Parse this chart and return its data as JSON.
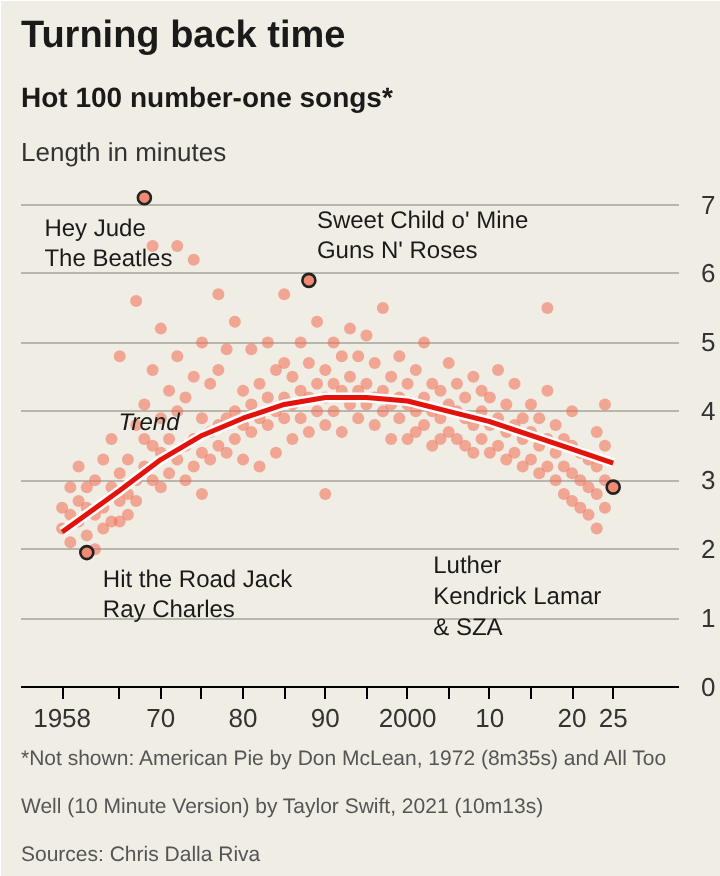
{
  "chart_data": {
    "type": "scatter",
    "title": "Turning back time",
    "subtitle": "Hot 100 number-one songs*",
    "ylabel": "Length in minutes",
    "xlim": [
      1953,
      2033
    ],
    "ylim": [
      0,
      7.4
    ],
    "xticks": [
      {
        "value": 1958,
        "label": "1958"
      },
      {
        "value": 1965,
        "label": null
      },
      {
        "value": 1970,
        "label": "70"
      },
      {
        "value": 1975,
        "label": null
      },
      {
        "value": 1980,
        "label": "80"
      },
      {
        "value": 1985,
        "label": null
      },
      {
        "value": 1990,
        "label": "90"
      },
      {
        "value": 1995,
        "label": null
      },
      {
        "value": 2000,
        "label": "2000"
      },
      {
        "value": 2005,
        "label": null
      },
      {
        "value": 2010,
        "label": "10"
      },
      {
        "value": 2015,
        "label": null
      },
      {
        "value": 2020,
        "label": "20"
      },
      {
        "value": 2025,
        "label": "25"
      }
    ],
    "yticks": [
      0,
      1,
      2,
      3,
      4,
      5,
      6,
      7
    ],
    "grid": "y",
    "marker": "circle",
    "series": [
      {
        "color": "#f26b50",
        "x": [
          1958,
          1958,
          1959,
          1959,
          1959,
          1960,
          1960,
          1960,
          1961,
          1961,
          1961,
          1962,
          1962,
          1962,
          1963,
          1963,
          1963,
          1964,
          1964,
          1964,
          1965,
          1965,
          1965,
          1965,
          1966,
          1966,
          1966,
          1967,
          1967,
          1967,
          1967,
          1968,
          1968,
          1968,
          1969,
          1969,
          1969,
          1969,
          1970,
          1970,
          1970,
          1970,
          1971,
          1971,
          1971,
          1972,
          1972,
          1972,
          1972,
          1973,
          1973,
          1973,
          1974,
          1974,
          1974,
          1974,
          1975,
          1975,
          1975,
          1975,
          1976,
          1976,
          1976,
          1977,
          1977,
          1977,
          1977,
          1978,
          1978,
          1978,
          1979,
          1979,
          1979,
          1980,
          1980,
          1980,
          1981,
          1981,
          1981,
          1982,
          1982,
          1982,
          1983,
          1983,
          1983,
          1984,
          1984,
          1984,
          1985,
          1985,
          1985,
          1985,
          1986,
          1986,
          1986,
          1987,
          1987,
          1987,
          1988,
          1988,
          1988,
          1989,
          1989,
          1989,
          1990,
          1990,
          1990,
          1990,
          1991,
          1991,
          1991,
          1992,
          1992,
          1992,
          1993,
          1993,
          1993,
          1994,
          1994,
          1994,
          1995,
          1995,
          1995,
          1996,
          1996,
          1996,
          1997,
          1997,
          1997,
          1998,
          1998,
          1998,
          1999,
          1999,
          1999,
          2000,
          2000,
          2000,
          2001,
          2001,
          2001,
          2002,
          2002,
          2002,
          2003,
          2003,
          2003,
          2004,
          2004,
          2004,
          2005,
          2005,
          2005,
          2006,
          2006,
          2006,
          2007,
          2007,
          2007,
          2008,
          2008,
          2008,
          2009,
          2009,
          2009,
          2010,
          2010,
          2010,
          2011,
          2011,
          2011,
          2012,
          2012,
          2012,
          2013,
          2013,
          2013,
          2014,
          2014,
          2014,
          2015,
          2015,
          2015,
          2016,
          2016,
          2016,
          2017,
          2017,
          2017,
          2017,
          2018,
          2018,
          2018,
          2019,
          2019,
          2019,
          2020,
          2020,
          2020,
          2020,
          2021,
          2021,
          2021,
          2022,
          2022,
          2022,
          2023,
          2023,
          2023,
          2023,
          2024,
          2024,
          2024,
          2024
        ],
        "values": [
          2.3,
          2.6,
          2.5,
          2.1,
          2.9,
          2.4,
          2.7,
          3.2,
          2.2,
          2.6,
          2.9,
          2.5,
          2.0,
          3.0,
          2.6,
          2.3,
          3.3,
          2.4,
          2.9,
          3.6,
          2.7,
          3.1,
          2.4,
          4.8,
          2.8,
          3.3,
          2.5,
          3.0,
          2.7,
          3.8,
          5.6,
          3.2,
          4.1,
          3.6,
          3.5,
          3.0,
          4.6,
          6.4,
          3.4,
          3.9,
          2.9,
          5.2,
          3.6,
          3.1,
          4.3,
          3.3,
          4.0,
          4.8,
          6.4,
          3.5,
          3.0,
          4.2,
          3.6,
          3.2,
          4.5,
          6.2,
          3.4,
          3.9,
          2.8,
          5.0,
          3.7,
          3.3,
          4.4,
          3.8,
          3.5,
          4.6,
          5.7,
          3.9,
          3.4,
          4.9,
          4.0,
          3.6,
          5.3,
          3.8,
          4.3,
          3.3,
          4.1,
          3.7,
          4.9,
          3.9,
          4.4,
          3.2,
          4.2,
          3.8,
          5.0,
          4.0,
          4.6,
          3.4,
          4.2,
          3.9,
          4.7,
          5.7,
          4.1,
          3.6,
          4.5,
          4.3,
          3.9,
          5.0,
          4.2,
          4.7,
          3.7,
          4.4,
          4.0,
          5.3,
          4.2,
          4.6,
          3.8,
          2.8,
          4.4,
          4.0,
          5.0,
          4.3,
          4.8,
          3.7,
          4.5,
          4.1,
          5.2,
          4.3,
          3.9,
          4.8,
          4.4,
          4.1,
          5.1,
          4.2,
          4.7,
          3.8,
          4.3,
          4.0,
          5.5,
          4.1,
          4.5,
          3.6,
          4.2,
          3.9,
          4.8,
          4.1,
          4.4,
          3.6,
          4.0,
          4.6,
          3.7,
          4.2,
          3.8,
          5.0,
          4.0,
          4.4,
          3.5,
          3.9,
          4.3,
          3.6,
          4.1,
          3.7,
          4.7,
          4.0,
          3.6,
          4.4,
          3.9,
          4.2,
          3.5,
          3.8,
          4.5,
          3.4,
          4.0,
          3.6,
          4.3,
          3.8,
          4.2,
          3.4,
          3.9,
          3.5,
          4.6,
          3.7,
          4.1,
          3.3,
          3.8,
          4.4,
          3.4,
          3.6,
          3.9,
          3.2,
          3.7,
          4.1,
          3.3,
          3.5,
          3.9,
          3.1,
          3.6,
          4.3,
          3.2,
          5.5,
          3.4,
          3.8,
          3.0,
          3.2,
          3.6,
          2.8,
          3.1,
          3.5,
          2.7,
          4.0,
          3.0,
          3.4,
          2.6,
          2.9,
          3.3,
          2.5,
          3.2,
          2.8,
          3.7,
          2.3,
          3.0,
          3.5,
          2.6,
          4.1
        ]
      },
      {
        "type": "line",
        "marker": "none",
        "color": "#e3120b",
        "x": [
          1958,
          1965,
          1970,
          1975,
          1980,
          1985,
          1990,
          1995,
          2000,
          2005,
          2010,
          2015,
          2020,
          2025
        ],
        "values": [
          2.25,
          2.85,
          3.3,
          3.65,
          3.9,
          4.1,
          4.2,
          4.2,
          4.15,
          4.0,
          3.85,
          3.65,
          3.45,
          3.25
        ]
      },
      {
        "color": "#f08a70",
        "x": [
          1968,
          1988,
          1961,
          2025
        ],
        "values": [
          7.1,
          5.9,
          1.95,
          2.9
        ]
      }
    ],
    "annotations": [
      {
        "text": "Hey Jude\nThe Beatles",
        "x": 1968,
        "y": 7.1
      },
      {
        "text": "Sweet Child o' Mine\nGuns N' Roses",
        "x": 1988,
        "y": 5.9
      },
      {
        "text": "Hit the Road Jack\nRay Charles",
        "x": 1961,
        "y": 1.95
      },
      {
        "text": "Luther\nKendrick Lamar\n& SZA",
        "x": 2025,
        "y": 2.9
      },
      {
        "text": "Trend",
        "x": 1973,
        "y": 3.55
      },
      "*Not shown: American Pie by Don McLean, 1972 (8m35s) and All Too Well (10 Minute Version) by Taylor Swift, 2021 (10m13s)",
      "Sources: Chris Dalla Riva"
    ]
  }
}
